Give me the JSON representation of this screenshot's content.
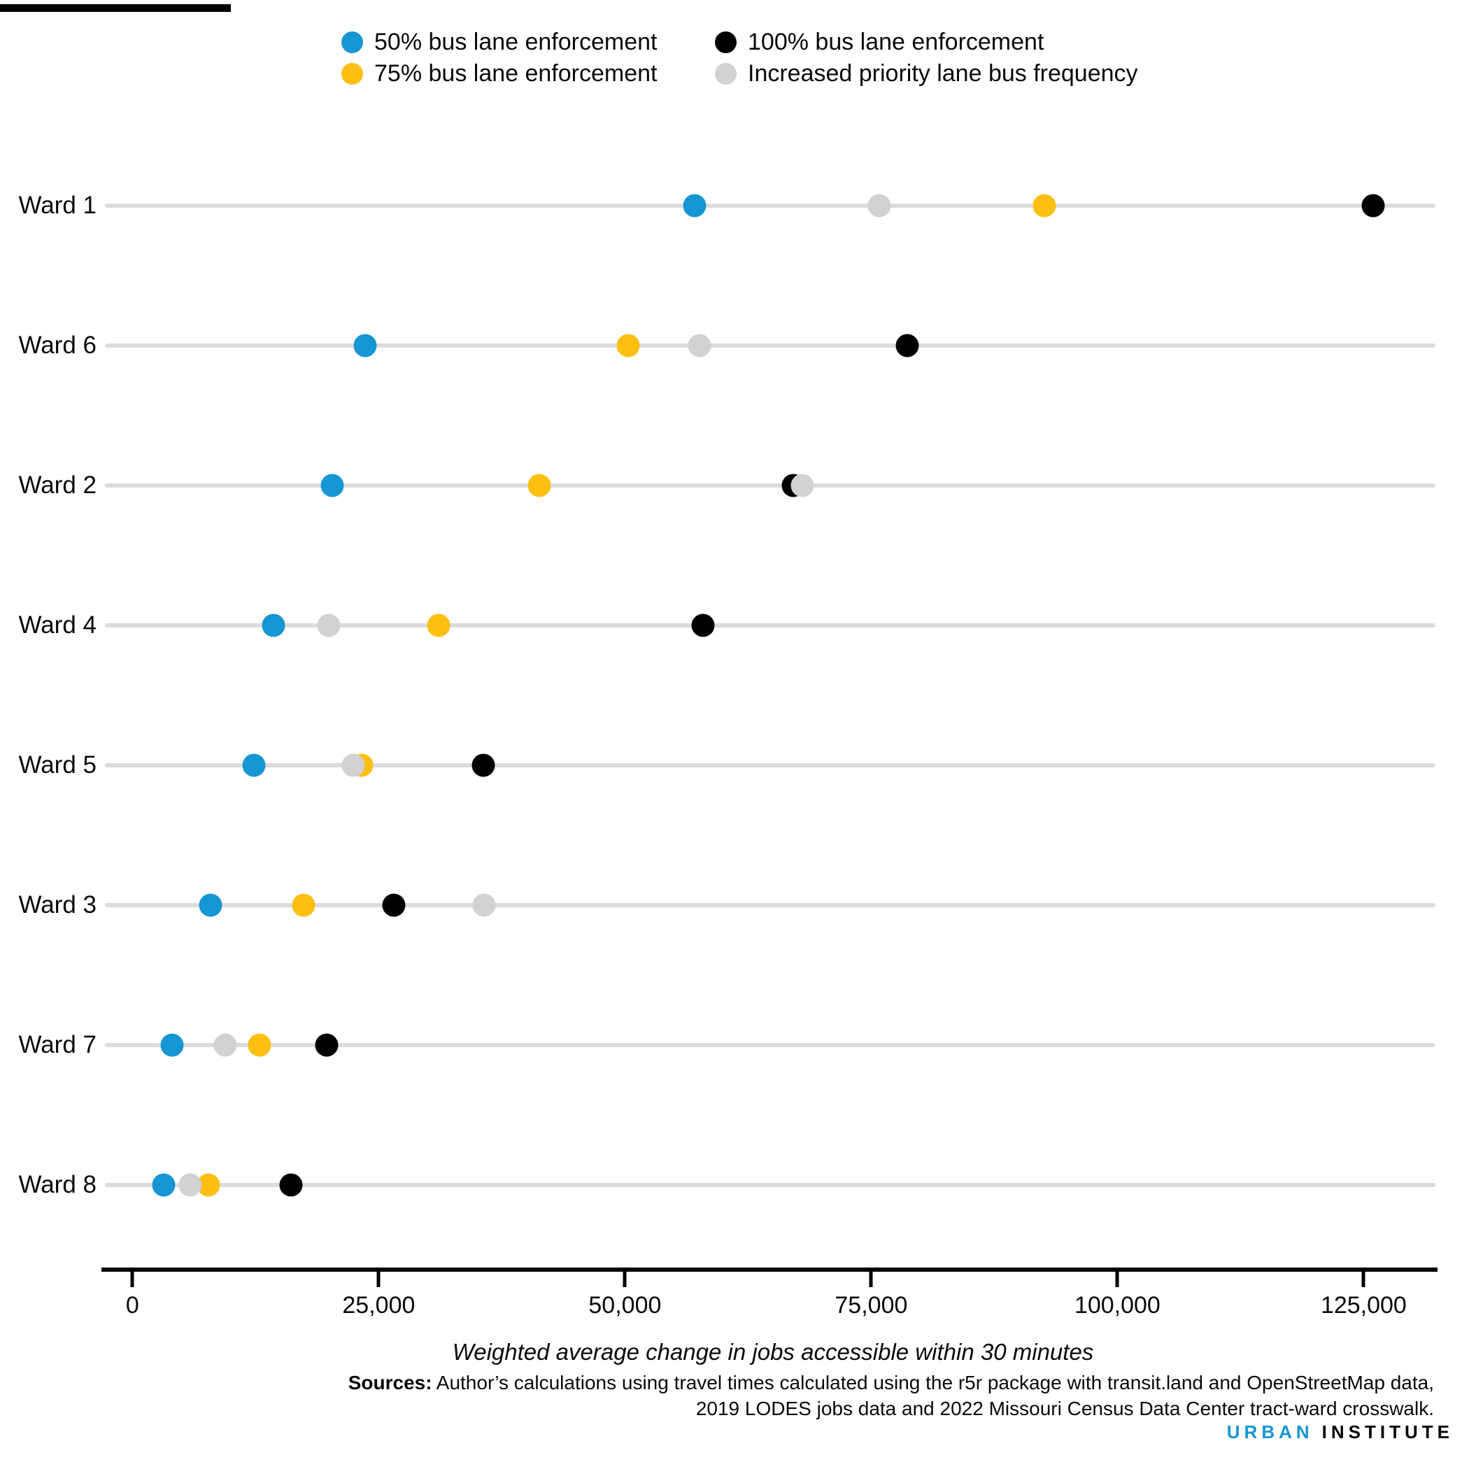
{
  "chart_data": {
    "type": "scatter",
    "subtype": "dot-plot",
    "categories": [
      "Ward 1",
      "Ward 6",
      "Ward 2",
      "Ward 4",
      "Ward 5",
      "Ward 3",
      "Ward 7",
      "Ward 8"
    ],
    "series": [
      {
        "name": "50% bus lane enforcement",
        "color": "#1696d2",
        "values": [
          57100,
          23600,
          20300,
          14300,
          12300,
          7900,
          4000,
          3200
        ]
      },
      {
        "name": "75% bus lane enforcement",
        "color": "#fdbf11",
        "values": [
          92600,
          50300,
          41300,
          31100,
          23300,
          17400,
          12900,
          7700
        ]
      },
      {
        "name": "100% bus lane enforcement",
        "color": "#000000",
        "values": [
          126000,
          78700,
          67100,
          57900,
          35600,
          26500,
          19700,
          16100
        ]
      },
      {
        "name": "Increased priority lane bus frequency",
        "color": "#d2d2d2",
        "values": [
          75800,
          57600,
          68000,
          19900,
          22400,
          35700,
          9400,
          5900
        ]
      }
    ],
    "x_ticks": [
      {
        "label": "0",
        "value": 0
      },
      {
        "label": "25,000",
        "value": 25000
      },
      {
        "label": "50,000",
        "value": 50000
      },
      {
        "label": "75,000",
        "value": 75000
      },
      {
        "label": "100,000",
        "value": 100000
      },
      {
        "label": "125,000",
        "value": 125000
      }
    ],
    "xlabel": "Weighted average change in jobs accessible within 30 minutes",
    "ylabel": "",
    "title": "",
    "xlim": [
      -3100,
      132400
    ],
    "grid": "horizontal-category-lines",
    "legend_position": "top"
  },
  "axis": {
    "title": "Weighted average change in jobs accessible within 30 minutes"
  },
  "sources": {
    "label": "Sources:",
    "line1": " Author’s calculations using travel times calculated using the r5r package with transit.land and OpenStreetMap data,",
    "line2": "2019 LODES jobs data and 2022 Missouri Census Data Center tract-ward crosswalk."
  },
  "brand": {
    "urban": "URBAN",
    "institute": "INSTITUTE"
  }
}
